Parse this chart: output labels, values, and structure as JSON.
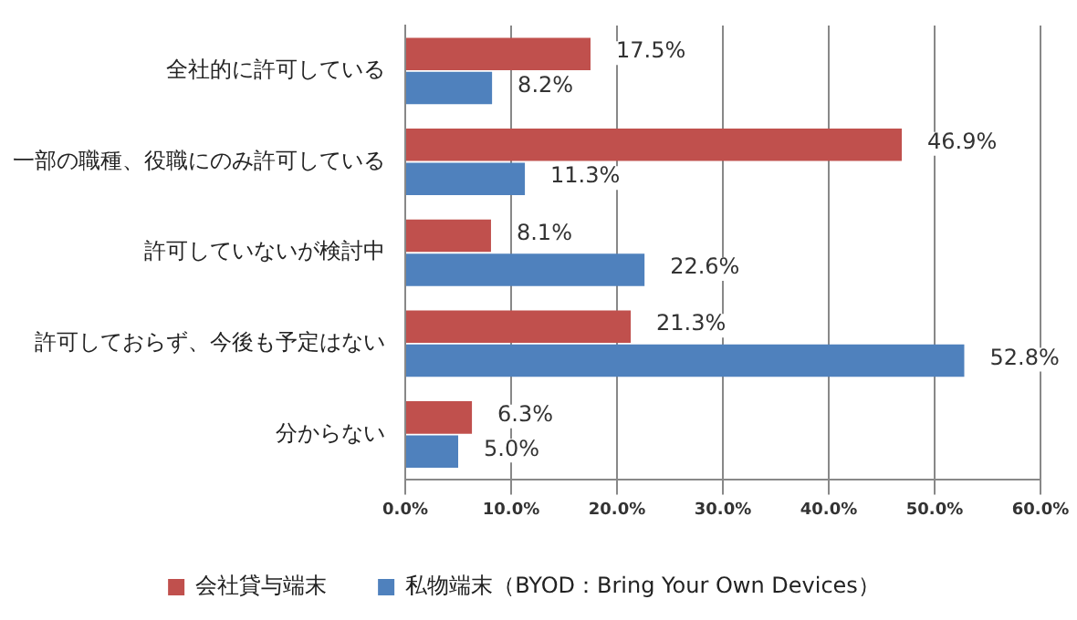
{
  "chart_data": {
    "type": "bar",
    "orientation": "horizontal",
    "categories": [
      "全社的に許可している",
      "一部の職種、役職にのみ許可している",
      "許可していないが検討中",
      "許可しておらず、今後も予定はない",
      "分からない"
    ],
    "series": [
      {
        "name": "会社貸与端末",
        "color": "#c0504d",
        "values": [
          17.5,
          46.9,
          8.1,
          21.3,
          6.3
        ],
        "value_labels": [
          "17.5%",
          "46.9%",
          "8.1%",
          "21.3%",
          "6.3%"
        ]
      },
      {
        "name": "私物端末（BYOD：Bring Your Own Devices）",
        "color": "#4f81bd",
        "values": [
          8.2,
          11.3,
          22.6,
          52.8,
          5.0
        ],
        "value_labels": [
          "8.2%",
          "11.3%",
          "22.6%",
          "52.8%",
          "5.0%"
        ]
      }
    ],
    "xlim": [
      0,
      60
    ],
    "xticks": [
      {
        "value": 0,
        "label": "0.0%"
      },
      {
        "value": 10,
        "label": "10.0%"
      },
      {
        "value": 20,
        "label": "20.0%"
      },
      {
        "value": 30,
        "label": "30.0%"
      },
      {
        "value": 40,
        "label": "40.0%"
      },
      {
        "value": 50,
        "label": "50.0%"
      },
      {
        "value": 60,
        "label": "60.0%"
      }
    ],
    "grid": "x",
    "legend": "bottom"
  }
}
